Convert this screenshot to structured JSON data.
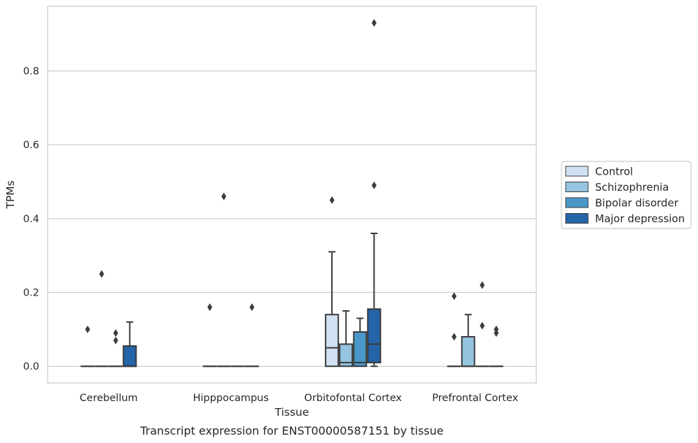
{
  "chart_data": {
    "type": "box",
    "title": "",
    "caption": "Transcript expression for ENST00000587151 by tissue",
    "xlabel": "Tissue",
    "ylabel": "TPMs",
    "ylim": [
      -0.045,
      0.975
    ],
    "yticks": [
      0.0,
      0.2,
      0.4,
      0.6,
      0.8
    ],
    "ytick_labels": [
      "0.0",
      "0.2",
      "0.4",
      "0.6",
      "0.8"
    ],
    "grid": "horizontal",
    "legend_position": "right",
    "categories": [
      "Cerebellum",
      "Hipppocampus",
      "Orbitofontal Cortex",
      "Prefrontal Cortex"
    ],
    "series": [
      {
        "name": "Control",
        "color": "#d0e1f2",
        "boxes": [
          {
            "q1": 0,
            "median": 0,
            "q3": 0,
            "whislo": 0,
            "whishi": 0,
            "fliers": [
              0.1
            ]
          },
          {
            "q1": 0,
            "median": 0,
            "q3": 0,
            "whislo": 0,
            "whishi": 0,
            "fliers": [
              0.16
            ]
          },
          {
            "q1": 0,
            "median": 0.05,
            "q3": 0.14,
            "whislo": 0,
            "whishi": 0.31,
            "fliers": [
              0.45
            ]
          },
          {
            "q1": 0,
            "median": 0,
            "q3": 0,
            "whislo": 0,
            "whishi": 0,
            "fliers": [
              0.08,
              0.19
            ]
          }
        ]
      },
      {
        "name": "Schizophrenia",
        "color": "#94c4df",
        "boxes": [
          {
            "q1": 0,
            "median": 0,
            "q3": 0,
            "whislo": 0,
            "whishi": 0,
            "fliers": [
              0.25
            ]
          },
          {
            "q1": 0,
            "median": 0,
            "q3": 0,
            "whislo": 0,
            "whishi": 0,
            "fliers": [
              0.46
            ]
          },
          {
            "q1": 0,
            "median": 0.01,
            "q3": 0.06,
            "whislo": 0,
            "whishi": 0.15,
            "fliers": []
          },
          {
            "q1": 0,
            "median": 0,
            "q3": 0.08,
            "whislo": 0,
            "whishi": 0.14,
            "fliers": []
          }
        ]
      },
      {
        "name": "Bipolar disorder",
        "color": "#4a98c9",
        "boxes": [
          {
            "q1": 0,
            "median": 0,
            "q3": 0,
            "whislo": 0,
            "whishi": 0,
            "fliers": [
              0.07,
              0.09
            ]
          },
          {
            "q1": 0,
            "median": 0,
            "q3": 0,
            "whislo": 0,
            "whishi": 0,
            "fliers": []
          },
          {
            "q1": 0,
            "median": 0.01,
            "q3": 0.093,
            "whislo": 0,
            "whishi": 0.13,
            "fliers": []
          },
          {
            "q1": 0,
            "median": 0,
            "q3": 0,
            "whislo": 0,
            "whishi": 0,
            "fliers": [
              0.11,
              0.22
            ]
          }
        ]
      },
      {
        "name": "Major depression",
        "color": "#2464a8",
        "boxes": [
          {
            "q1": 0,
            "median": 0,
            "q3": 0.055,
            "whislo": 0,
            "whishi": 0.12,
            "fliers": []
          },
          {
            "q1": 0,
            "median": 0,
            "q3": 0,
            "whislo": 0,
            "whishi": 0,
            "fliers": [
              0.16
            ]
          },
          {
            "q1": 0.01,
            "median": 0.06,
            "q3": 0.155,
            "whislo": 0,
            "whishi": 0.36,
            "fliers": [
              0.49,
              0.93
            ]
          },
          {
            "q1": 0,
            "median": 0,
            "q3": 0,
            "whislo": 0,
            "whishi": 0,
            "fliers": [
              0.09,
              0.1
            ]
          }
        ]
      }
    ]
  }
}
